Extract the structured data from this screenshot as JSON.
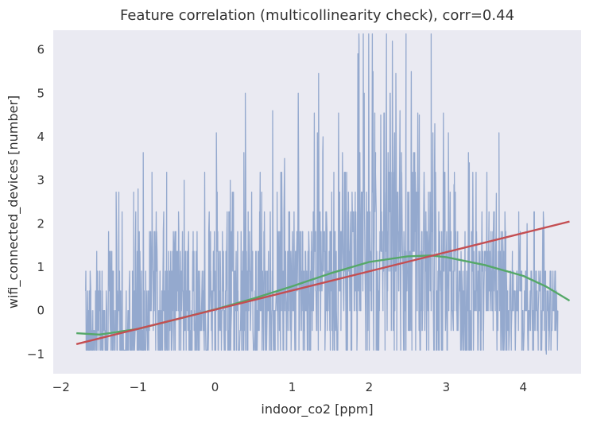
{
  "chart_data": {
    "type": "line",
    "title": "Feature correlation (multicollinearity check), corr=0.44",
    "xlabel": "indoor_co2 [ppm]",
    "ylabel": "wifi_connected_devices [number]",
    "xlim": [
      -2.1,
      4.75
    ],
    "ylim": [
      -1.45,
      6.45
    ],
    "xticks": [
      -2,
      -1,
      0,
      1,
      2,
      3,
      4
    ],
    "yticks": [
      -1,
      0,
      1,
      2,
      3,
      4,
      5,
      6
    ],
    "grid": false,
    "legend": "none",
    "colors": {
      "background": "#eaeaf2",
      "raw": "#4c72b0",
      "linear_fit": "#c44e52",
      "poly_fit": "#55a868"
    },
    "series": [
      {
        "kind": "raw-trace",
        "x_range": [
          -1.68,
          4.45
        ],
        "y_min": -1.1,
        "y_max": 6.2,
        "trend_anchors": [
          [
            -1.6,
            -0.7
          ],
          [
            -1.0,
            -0.1
          ],
          [
            0.0,
            0.3
          ],
          [
            1.0,
            0.6
          ],
          [
            1.5,
            0.9
          ],
          [
            2.0,
            1.5
          ],
          [
            2.5,
            1.3
          ],
          [
            3.0,
            0.7
          ],
          [
            3.5,
            0.4
          ],
          [
            4.0,
            0.1
          ],
          [
            4.4,
            0.2
          ]
        ],
        "peaks": [
          [
            1.87,
            6.2
          ],
          [
            2.3,
            6.2
          ],
          [
            2.05,
            5.5
          ],
          [
            2.55,
            5.5
          ],
          [
            0.75,
            4.6
          ],
          [
            2.15,
            4.5
          ],
          [
            2.85,
            4.3
          ],
          [
            1.4,
            4.0
          ],
          [
            -1.0,
            2.8
          ],
          [
            -0.4,
            3.0
          ],
          [
            0.2,
            3.0
          ],
          [
            0.4,
            3.2
          ],
          [
            0.9,
            3.5
          ],
          [
            1.6,
            3.4
          ],
          [
            2.4,
            4.6
          ],
          [
            2.65,
            4.5
          ],
          [
            3.3,
            3.4
          ],
          [
            3.1,
            2.9
          ],
          [
            3.65,
            2.7
          ],
          [
            4.05,
            2.0
          ],
          [
            4.25,
            1.9
          ],
          [
            4.3,
            -1.0
          ]
        ]
      },
      {
        "kind": "linear-fit",
        "x": [
          -1.8,
          4.6
        ],
        "y": [
          -0.77,
          2.05
        ]
      },
      {
        "kind": "polynomial-fit",
        "x": [
          -1.8,
          -1.5,
          -1.0,
          -0.5,
          0.0,
          0.5,
          1.0,
          1.5,
          2.0,
          2.5,
          2.8,
          3.0,
          3.5,
          4.0,
          4.3,
          4.6
        ],
        "y": [
          -0.52,
          -0.55,
          -0.42,
          -0.2,
          0.03,
          0.28,
          0.56,
          0.86,
          1.12,
          1.25,
          1.27,
          1.23,
          1.05,
          0.8,
          0.55,
          0.23
        ]
      }
    ]
  }
}
